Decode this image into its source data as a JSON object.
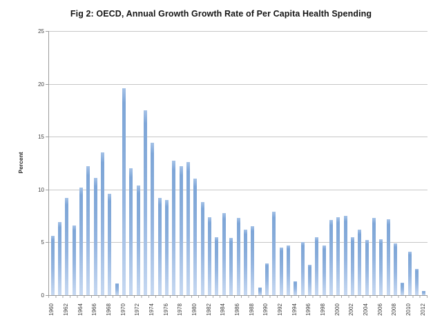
{
  "chart_title": "Fig 2: OECD, Annual Growth Growth Rate of Per Capita Health Spending",
  "y_axis_title": "Percent",
  "colors": {
    "bar_top": "#7ea6d8",
    "bar_bottom": "#c6d8f1",
    "gridline": "#c6c6c6",
    "axis": "#9a9a9a",
    "title_text": "#141414",
    "tick_text": "#3c3c3c",
    "background": "#ffffff"
  },
  "chart_data": {
    "type": "bar",
    "title": "Fig 2: OECD, Annual Growth Growth Rate of Per Capita Health Spending",
    "xlabel": "",
    "ylabel": "Percent",
    "ylim": [
      0,
      25
    ],
    "yticks": [
      0,
      5,
      10,
      15,
      20,
      25
    ],
    "grid": true,
    "legend": false,
    "x_label_every": 2,
    "categories": [
      1960,
      1961,
      1962,
      1963,
      1964,
      1965,
      1966,
      1967,
      1968,
      1969,
      1970,
      1971,
      1972,
      1973,
      1974,
      1975,
      1976,
      1977,
      1978,
      1979,
      1980,
      1981,
      1982,
      1983,
      1984,
      1985,
      1986,
      1987,
      1988,
      1989,
      1990,
      1991,
      1992,
      1993,
      1994,
      1995,
      1996,
      1997,
      1998,
      1999,
      2000,
      2001,
      2002,
      2003,
      2004,
      2005,
      2006,
      2007,
      2008,
      2009,
      2010,
      2011,
      2012
    ],
    "values": [
      5.6,
      6.9,
      9.2,
      6.6,
      10.2,
      12.2,
      11.1,
      13.5,
      9.6,
      1.1,
      19.6,
      12.0,
      10.4,
      17.5,
      14.4,
      9.2,
      9.0,
      12.7,
      12.2,
      12.6,
      11.0,
      8.8,
      7.4,
      5.5,
      7.8,
      5.4,
      7.3,
      6.2,
      6.5,
      0.7,
      3.0,
      7.9,
      4.5,
      4.7,
      1.3,
      5.0,
      2.9,
      5.5,
      4.7,
      7.1,
      7.4,
      7.5,
      5.5,
      6.2,
      5.2,
      7.3,
      5.3,
      7.2,
      4.9,
      1.2,
      4.1,
      2.5,
      0.4
    ]
  }
}
